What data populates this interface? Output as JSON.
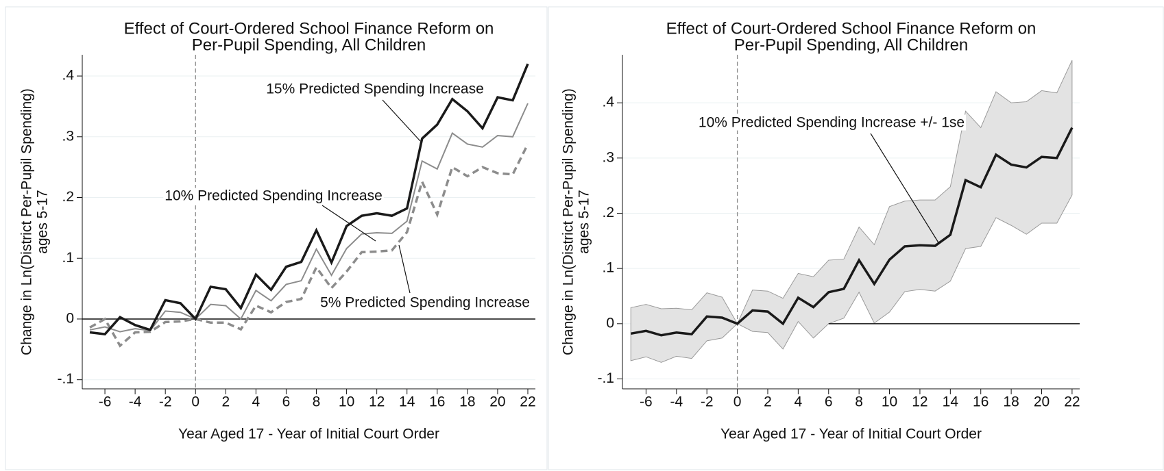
{
  "chart_data": [
    {
      "type": "line",
      "title": [
        "Effect of Court-Ordered School Finance Reform on",
        "Per-Pupil Spending, All Children"
      ],
      "xlabel": "Year Aged 17 - Year of Initial Court Order",
      "ylabel": [
        "Change in Ln(District Per-Pupil Spending)",
        "ages 5-17"
      ],
      "x": [
        -7,
        -6,
        -5,
        -4,
        -3,
        -2,
        -1,
        0,
        1,
        2,
        3,
        4,
        5,
        6,
        7,
        8,
        9,
        10,
        11,
        12,
        13,
        14,
        15,
        16,
        17,
        18,
        19,
        20,
        21,
        22
      ],
      "series": [
        {
          "color": "#1a1a1a",
          "style": "thick",
          "values": [
            -0.022,
            -0.025,
            0.003,
            -0.01,
            -0.018,
            0.031,
            0.026,
            0,
            0.053,
            0.049,
            0.018,
            0.073,
            0.048,
            0.086,
            0.094,
            0.146,
            0.093,
            0.153,
            0.17,
            0.174,
            0.17,
            0.182,
            0.297,
            0.32,
            0.362,
            0.342,
            0.314,
            0.365,
            0.36,
            0.42
          ]
        },
        {
          "color": "#8c8c8c",
          "style": "thin",
          "values": [
            -0.018,
            -0.013,
            -0.021,
            -0.016,
            -0.019,
            0.013,
            0.011,
            0,
            0.024,
            0.022,
            0,
            0.047,
            0.03,
            0.057,
            0.063,
            0.115,
            0.072,
            0.116,
            0.14,
            0.142,
            0.141,
            0.161,
            0.26,
            0.247,
            0.306,
            0.288,
            0.283,
            0.302,
            0.3,
            0.355
          ]
        },
        {
          "color": "#8c8c8c",
          "style": "dashed",
          "values": [
            -0.014,
            0,
            -0.044,
            -0.022,
            -0.021,
            -0.005,
            -0.004,
            0,
            -0.006,
            -0.006,
            -0.017,
            0.022,
            0.011,
            0.028,
            0.033,
            0.085,
            0.051,
            0.078,
            0.11,
            0.111,
            0.113,
            0.143,
            0.226,
            0.172,
            0.25,
            0.235,
            0.25,
            0.24,
            0.238,
            0.288
          ]
        }
      ],
      "annotations": [
        "15% Predicted Spending Increase",
        "10% Predicted Spending Increase",
        "5% Predicted Spending Increase"
      ],
      "xlim": [
        -7.5,
        22.5
      ],
      "xticks": [
        -6,
        -4,
        -2,
        0,
        2,
        4,
        6,
        8,
        10,
        12,
        14,
        16,
        18,
        20,
        22
      ],
      "ylim": [
        -0.115,
        0.435
      ],
      "yticks": [
        {
          "value": -0.1,
          "label": "-.1"
        },
        0,
        {
          "value": 0.1,
          "label": ".1"
        },
        {
          "value": 0.2,
          "label": ".2"
        },
        {
          "value": 0.3,
          "label": ".3"
        },
        {
          "value": 0.4,
          "label": ".4"
        }
      ],
      "grid": true
    },
    {
      "type": "line",
      "title": [
        "Effect of Court-Ordered School Finance Reform on",
        "Per-Pupil Spending, All Children"
      ],
      "xlabel": "Year Aged 17 - Year of Initial Court Order",
      "ylabel": [
        "Change in Ln(District Per-Pupil Spending)",
        "ages 5-17"
      ],
      "x": [
        -7,
        -6,
        -5,
        -4,
        -3,
        -2,
        -1,
        0,
        1,
        2,
        3,
        4,
        5,
        6,
        7,
        8,
        9,
        10,
        11,
        12,
        13,
        14,
        15,
        16,
        17,
        18,
        19,
        20,
        21,
        22
      ],
      "band": {
        "color": "#e3e3e3",
        "upper": [
          0.029,
          0.035,
          0.027,
          0.028,
          0.025,
          0.056,
          0.048,
          0,
          0.061,
          0.059,
          0.046,
          0.091,
          0.085,
          0.115,
          0.117,
          0.175,
          0.143,
          0.212,
          0.222,
          0.224,
          0.224,
          0.248,
          0.385,
          0.355,
          0.42,
          0.4,
          0.402,
          0.422,
          0.418,
          0.477
        ],
        "lower": [
          -0.067,
          -0.06,
          -0.07,
          -0.059,
          -0.063,
          -0.031,
          -0.026,
          0,
          -0.014,
          -0.016,
          -0.046,
          0.004,
          -0.026,
          0,
          0.01,
          0.057,
          0.001,
          0.021,
          0.058,
          0.062,
          0.059,
          0.077,
          0.136,
          0.14,
          0.192,
          0.178,
          0.162,
          0.182,
          0.182,
          0.233
        ]
      },
      "series": [
        {
          "color": "#1a1a1a",
          "style": "thick",
          "values": [
            -0.018,
            -0.013,
            -0.021,
            -0.016,
            -0.019,
            0.013,
            0.011,
            0,
            0.024,
            0.022,
            0,
            0.047,
            0.03,
            0.057,
            0.063,
            0.115,
            0.072,
            0.116,
            0.14,
            0.142,
            0.141,
            0.161,
            0.26,
            0.247,
            0.306,
            0.288,
            0.283,
            0.302,
            0.3,
            0.355
          ]
        }
      ],
      "annotations": [
        "10% Predicted Spending Increase +/- 1se"
      ],
      "xlim": [
        -7.55,
        22.5
      ],
      "xticks": [
        -6,
        -4,
        -2,
        0,
        2,
        4,
        6,
        8,
        10,
        12,
        14,
        16,
        18,
        20,
        22
      ],
      "ylim": [
        -0.118,
        0.487
      ],
      "yticks": [
        {
          "value": -0.1,
          "label": "-.1"
        },
        0,
        {
          "value": 0.1,
          "label": ".1"
        },
        {
          "value": 0.2,
          "label": ".2"
        },
        {
          "value": 0.3,
          "label": ".3"
        },
        {
          "value": 0.4,
          "label": ".4"
        }
      ],
      "grid": true
    }
  ]
}
